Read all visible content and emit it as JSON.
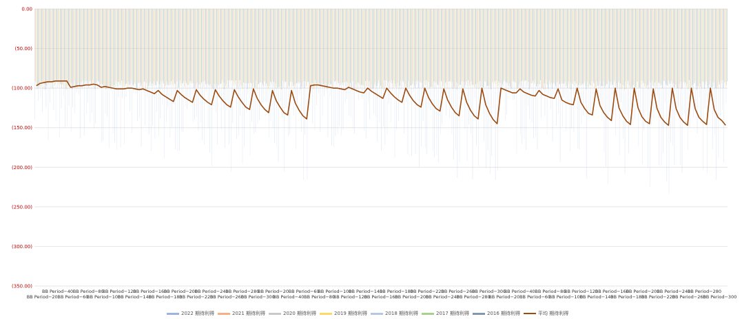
{
  "chart_data": {
    "type": "bar",
    "title": "",
    "xlabel": "",
    "ylabel": "",
    "ylim": [
      -350,
      0
    ],
    "yticks": [
      {
        "value": 0,
        "label": "0.00"
      },
      {
        "value": -50,
        "label": "(50.00)"
      },
      {
        "value": -100,
        "label": "(100.00)"
      },
      {
        "value": -150,
        "label": "(150.00)"
      },
      {
        "value": -200,
        "label": "(200.00)"
      },
      {
        "value": -250,
        "label": "(250.00)"
      },
      {
        "value": -300,
        "label": "(300.00)"
      },
      {
        "value": -350,
        "label": "(350.00)"
      }
    ],
    "grid": true,
    "legend_position": "bottom",
    "category_groups": [
      {
        "periods": [
          20,
          40,
          60,
          80,
          100,
          120,
          140,
          160,
          180,
          200,
          220,
          240,
          260,
          280,
          300
        ]
      },
      {
        "periods": [
          20,
          40,
          60,
          80,
          100,
          120,
          140,
          160,
          180,
          200,
          220,
          240,
          260,
          280,
          300
        ]
      },
      {
        "periods": [
          20,
          40,
          60,
          80,
          100,
          120,
          140,
          160,
          180,
          200,
          220,
          240,
          260,
          280,
          300
        ]
      }
    ],
    "category_prefix": "BB Period−",
    "bar_series": [
      {
        "name": "2022 期待利得",
        "color": "#9db4e0"
      },
      {
        "name": "2021 期待利得",
        "color": "#f4b183"
      },
      {
        "name": "2020 期待利得",
        "color": "#c9c9c9"
      },
      {
        "name": "2019 期待利得",
        "color": "#ffd966"
      },
      {
        "name": "2018 期待利得",
        "color": "#b4c7e7"
      },
      {
        "name": "2017 期待利得",
        "color": "#a9d18e"
      },
      {
        "name": "2016 期待利得",
        "color": "#8497b0"
      }
    ],
    "bar_band": {
      "upper": -90,
      "lower_min": -100
    },
    "average_series": {
      "name": "平均 期待利得",
      "color": "#9c4a0e",
      "values": [
        -97,
        -94,
        -93,
        -92,
        -92,
        -91,
        -91,
        -91,
        -91,
        -99,
        -98,
        -97,
        -97,
        -96,
        -96,
        -95,
        -96,
        -99,
        -98,
        -99,
        -100,
        -101,
        -101,
        -101,
        -100,
        -100,
        -101,
        -102,
        -101,
        -103,
        -105,
        -107,
        -103,
        -108,
        -111,
        -114,
        -117,
        -103,
        -108,
        -112,
        -115,
        -118,
        -102,
        -109,
        -114,
        -118,
        -121,
        -102,
        -110,
        -116,
        -121,
        -124,
        -102,
        -111,
        -118,
        -124,
        -127,
        -101,
        -113,
        -121,
        -127,
        -131,
        -103,
        -116,
        -124,
        -131,
        -134,
        -103,
        -119,
        -128,
        -135,
        -139,
        -97,
        -96,
        -96,
        -97,
        -98,
        -99,
        -100,
        -100,
        -101,
        -102,
        -99,
        -101,
        -103,
        -105,
        -106,
        -100,
        -104,
        -107,
        -110,
        -113,
        -100,
        -106,
        -111,
        -115,
        -118,
        -100,
        -109,
        -116,
        -121,
        -124,
        -100,
        -112,
        -120,
        -126,
        -129,
        -101,
        -115,
        -124,
        -131,
        -135,
        -101,
        -118,
        -128,
        -135,
        -139,
        -100,
        -121,
        -132,
        -140,
        -145,
        -100,
        -102,
        -104,
        -106,
        -106,
        -101,
        -105,
        -107,
        -109,
        -110,
        -103,
        -108,
        -110,
        -112,
        -113,
        -101,
        -115,
        -118,
        -120,
        -121,
        -100,
        -118,
        -126,
        -132,
        -134,
        -101,
        -122,
        -131,
        -137,
        -141,
        -100,
        -125,
        -135,
        -142,
        -146,
        -100,
        -125,
        -136,
        -142,
        -145,
        -101,
        -126,
        -137,
        -143,
        -147,
        -100,
        -126,
        -137,
        -143,
        -147,
        -100,
        -126,
        -137,
        -142,
        -146,
        -100,
        -127,
        -137,
        -141,
        -147
      ]
    }
  }
}
